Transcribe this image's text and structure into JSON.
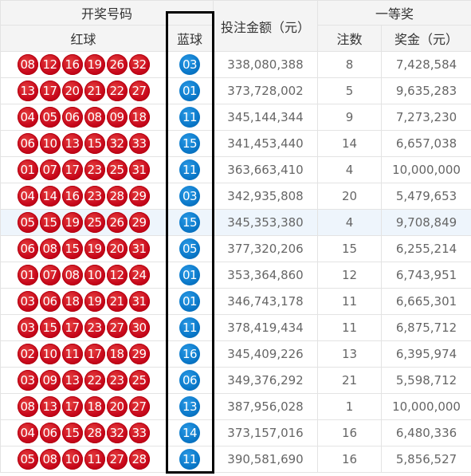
{
  "header": {
    "draw_numbers": "开奖号码",
    "red_ball": "红球",
    "blue_ball": "蓝球",
    "total_bet": "投注金额（元）",
    "first_prize": "一等奖",
    "winners": "注数",
    "prize_amount": "奖金（元）"
  },
  "rows": [
    {
      "red": [
        "08",
        "12",
        "16",
        "19",
        "26",
        "32"
      ],
      "blue": "03",
      "bet": "338,080,388",
      "count": "8",
      "prize": "7,428,584"
    },
    {
      "red": [
        "13",
        "17",
        "20",
        "21",
        "22",
        "27"
      ],
      "blue": "01",
      "bet": "373,728,002",
      "count": "5",
      "prize": "9,635,283"
    },
    {
      "red": [
        "04",
        "05",
        "06",
        "08",
        "09",
        "18"
      ],
      "blue": "11",
      "bet": "345,144,344",
      "count": "9",
      "prize": "7,273,230"
    },
    {
      "red": [
        "06",
        "10",
        "13",
        "15",
        "32",
        "33"
      ],
      "blue": "15",
      "bet": "341,453,440",
      "count": "14",
      "prize": "6,657,038"
    },
    {
      "red": [
        "01",
        "07",
        "17",
        "23",
        "25",
        "31"
      ],
      "blue": "11",
      "bet": "363,663,410",
      "count": "4",
      "prize": "10,000,000"
    },
    {
      "red": [
        "04",
        "14",
        "16",
        "23",
        "28",
        "29"
      ],
      "blue": "03",
      "bet": "342,935,808",
      "count": "20",
      "prize": "5,479,653"
    },
    {
      "red": [
        "05",
        "15",
        "19",
        "25",
        "26",
        "29"
      ],
      "blue": "15",
      "bet": "345,353,380",
      "count": "4",
      "prize": "9,708,849",
      "highlight": true
    },
    {
      "red": [
        "06",
        "08",
        "15",
        "19",
        "20",
        "31"
      ],
      "blue": "05",
      "bet": "377,320,206",
      "count": "15",
      "prize": "6,255,214"
    },
    {
      "red": [
        "01",
        "07",
        "08",
        "10",
        "12",
        "24"
      ],
      "blue": "01",
      "bet": "353,364,860",
      "count": "12",
      "prize": "6,743,951"
    },
    {
      "red": [
        "03",
        "06",
        "18",
        "19",
        "21",
        "31"
      ],
      "blue": "01",
      "bet": "346,743,178",
      "count": "11",
      "prize": "6,665,301"
    },
    {
      "red": [
        "03",
        "15",
        "17",
        "23",
        "27",
        "30"
      ],
      "blue": "11",
      "bet": "378,419,434",
      "count": "11",
      "prize": "6,875,712"
    },
    {
      "red": [
        "02",
        "10",
        "11",
        "17",
        "18",
        "29"
      ],
      "blue": "16",
      "bet": "345,409,226",
      "count": "13",
      "prize": "6,395,974"
    },
    {
      "red": [
        "03",
        "09",
        "13",
        "22",
        "23",
        "25"
      ],
      "blue": "06",
      "bet": "349,376,292",
      "count": "21",
      "prize": "5,598,712"
    },
    {
      "red": [
        "08",
        "13",
        "17",
        "18",
        "20",
        "27"
      ],
      "blue": "13",
      "bet": "387,956,028",
      "count": "1",
      "prize": "10,000,000"
    },
    {
      "red": [
        "04",
        "06",
        "15",
        "28",
        "32",
        "33"
      ],
      "blue": "14",
      "bet": "373,157,016",
      "count": "16",
      "prize": "6,480,336"
    },
    {
      "red": [
        "05",
        "08",
        "10",
        "11",
        "27",
        "28"
      ],
      "blue": "11",
      "bet": "390,581,690",
      "count": "16",
      "prize": "5,856,527"
    }
  ],
  "colors": {
    "red_ball": "#c8081b",
    "blue_ball": "#0a78c9",
    "header_bg": "#f4f4f4",
    "highlight_row": "#eef5fc"
  }
}
